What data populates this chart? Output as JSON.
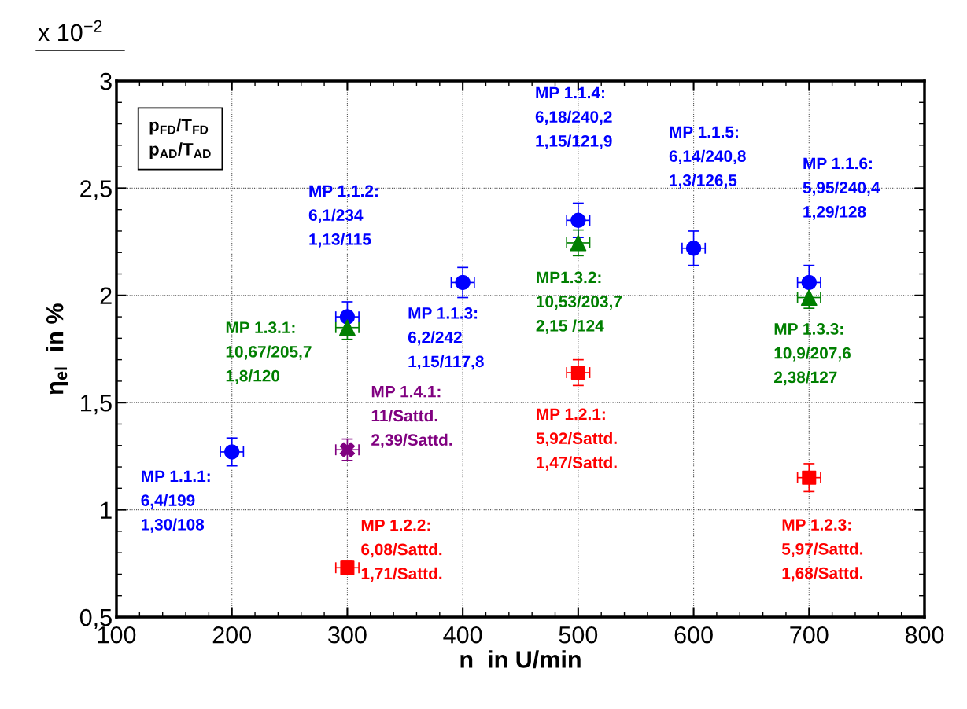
{
  "chart_data": {
    "type": "scatter",
    "xlabel": "n  in U/min",
    "ylabel": "η$_{el}$  in %",
    "xlim": [
      100,
      800
    ],
    "ylim": [
      0.5,
      3
    ],
    "xticks": [
      100,
      {
        "value": 120,
        "label": null
      },
      {
        "value": 140,
        "label": null
      },
      {
        "value": 160,
        "label": null
      },
      {
        "value": 180,
        "label": null
      },
      200,
      {
        "value": 220,
        "label": null
      },
      {
        "value": 240,
        "label": null
      },
      {
        "value": 260,
        "label": null
      },
      {
        "value": 280,
        "label": null
      },
      300,
      {
        "value": 320,
        "label": null
      },
      {
        "value": 340,
        "label": null
      },
      {
        "value": 360,
        "label": null
      },
      {
        "value": 380,
        "label": null
      },
      400,
      {
        "value": 420,
        "label": null
      },
      {
        "value": 440,
        "label": null
      },
      {
        "value": 460,
        "label": null
      },
      {
        "value": 480,
        "label": null
      },
      500,
      {
        "value": 520,
        "label": null
      },
      {
        "value": 540,
        "label": null
      },
      {
        "value": 560,
        "label": null
      },
      {
        "value": 580,
        "label": null
      },
      600,
      {
        "value": 620,
        "label": null
      },
      {
        "value": 640,
        "label": null
      },
      {
        "value": 660,
        "label": null
      },
      {
        "value": 680,
        "label": null
      },
      700,
      {
        "value": 720,
        "label": null
      },
      {
        "value": 740,
        "label": null
      },
      {
        "value": 760,
        "label": null
      },
      {
        "value": 780,
        "label": null
      },
      800
    ],
    "yticks": [
      {
        "value": 0.5,
        "label": "0,5"
      },
      {
        "value": 0.6,
        "label": null
      },
      {
        "value": 0.7,
        "label": null
      },
      {
        "value": 0.8,
        "label": null
      },
      {
        "value": 0.9,
        "label": null
      },
      1,
      {
        "value": 1.1,
        "label": null
      },
      {
        "value": 1.2,
        "label": null
      },
      {
        "value": 1.3,
        "label": null
      },
      {
        "value": 1.4,
        "label": null
      },
      {
        "value": 1.5,
        "label": "1,5"
      },
      {
        "value": 1.6,
        "label": null
      },
      {
        "value": 1.7,
        "label": null
      },
      {
        "value": 1.8,
        "label": null
      },
      {
        "value": 1.9,
        "label": null
      },
      2,
      {
        "value": 2.1,
        "label": null
      },
      {
        "value": 2.2,
        "label": null
      },
      {
        "value": 2.3,
        "label": null
      },
      {
        "value": 2.4,
        "label": null
      },
      {
        "value": 2.5,
        "label": "2,5"
      },
      {
        "value": 2.6,
        "label": null
      },
      {
        "value": 2.7,
        "label": null
      },
      {
        "value": 2.8,
        "label": null
      },
      {
        "value": 2.9,
        "label": null
      },
      3
    ],
    "grid": true,
    "series": [
      {
        "color": "#0000ff",
        "marker": "circle",
        "x": [
          200,
          300,
          400,
          500,
          600,
          700
        ],
        "values": [
          1.27,
          1.9,
          2.06,
          2.35,
          2.22,
          2.06
        ],
        "errors": [
          0.065,
          0.07,
          0.07,
          0.08,
          0.08,
          0.08
        ],
        "xerrors": [
          10,
          10,
          10,
          10,
          10,
          10
        ]
      },
      {
        "color": "#007f00",
        "marker": "triangle",
        "x": [
          300,
          500,
          700
        ],
        "values": [
          1.85,
          2.245,
          1.99
        ],
        "errors": [
          0.055,
          0.06,
          0.05
        ],
        "xerrors": [
          10,
          10,
          10
        ]
      },
      {
        "color": "#ff0000",
        "marker": "square",
        "x": [
          300,
          500,
          700
        ],
        "values": [
          0.73,
          1.64,
          1.15
        ],
        "errors": [
          0.03,
          0.06,
          0.065
        ],
        "xerrors": [
          10,
          10,
          10
        ]
      },
      {
        "color": "#800080",
        "marker": "cross",
        "x": [
          300
        ],
        "values": [
          1.28
        ],
        "errors": [
          0.05
        ],
        "xerrors": [
          10
        ]
      }
    ],
    "annotations": [
      {
        "text": "MP 1.1.1:\n6,4/199\n1,30/108",
        "x": 200,
        "y": 1.27
      },
      {
        "text": "MP 1.1.3:\n6,2/242\n1,15/117,8",
        "x": 400,
        "y": 2.06
      },
      {
        "text": "MP 1.3.1:\n10,67/205,7\n1,8/120",
        "x": 300,
        "y": 1.85
      },
      {
        "text": "MP1.3.2:\n10,53/203,7\n2,15 /124",
        "x": 500,
        "y": 2.245
      },
      {
        "text": "MP 1.3.3:\n10,9/207,6\n2,38/127",
        "x": 700,
        "y": 1.99
      },
      {
        "text": "MP 1.4.1:\n11/Sattd.\n2,39/Sattd.",
        "x": 300,
        "y": 1.28
      },
      {
        "text": "MP 1.2.2:\n6,08/Sattd.\n1,71/Sattd.",
        "x": 300,
        "y": 0.73
      },
      {
        "text": "MP 1.2.1:\n5,92/Sattd.\n1,47/Sattd.",
        "x": 500,
        "y": 1.64
      },
      {
        "text": "MP 1.2.3:\n5,97/Sattd.\n1,68/Sattd.",
        "x": 700,
        "y": 1.15
      },
      "MP 1.1.2:\n6,1/234\n1,13/115",
      "MP 1.1.4:\n6,18/240,2\n1,15/121,9",
      "MP 1.1.5:\n6,14/240,8\n1,3/126,5",
      "MP 1.1.6:\n5,95/240,4\n1,29/128",
      "p$_{FD}$/T$_{FD}$\np$_{AD}$/T$_{AD}$",
      "x 10$^{−2}$"
    ]
  }
}
